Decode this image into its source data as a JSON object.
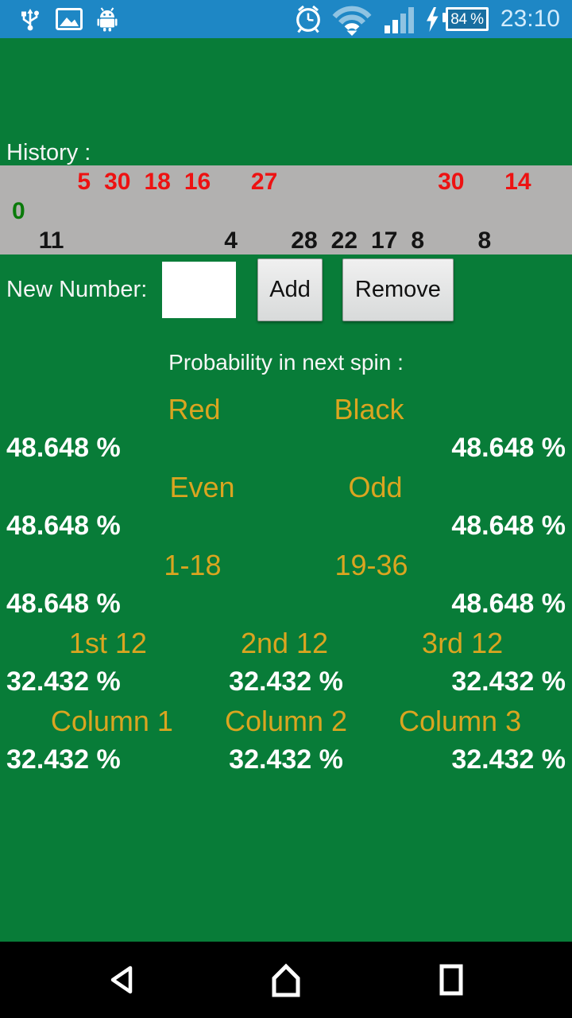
{
  "status_bar": {
    "time": "23:10",
    "battery": "84 %",
    "left_icons": [
      "usb-icon",
      "photo-icon",
      "android-icon"
    ],
    "right_icons": [
      "alarm-icon",
      "wifi-icon",
      "signal-icon",
      "charging-bolt-icon",
      "battery-icon"
    ]
  },
  "history": {
    "label": "History :",
    "entries": [
      {
        "value": "0",
        "color": "green"
      },
      {
        "value": "11",
        "color": "black"
      },
      {
        "value": "5",
        "color": "red"
      },
      {
        "value": "30",
        "color": "red"
      },
      {
        "value": "18",
        "color": "red"
      },
      {
        "value": "16",
        "color": "red"
      },
      {
        "value": "4",
        "color": "black"
      },
      {
        "value": "27",
        "color": "red"
      },
      {
        "value": "28",
        "color": "black"
      },
      {
        "value": "22",
        "color": "black"
      },
      {
        "value": "17",
        "color": "black"
      },
      {
        "value": "8",
        "color": "black"
      },
      {
        "value": "30",
        "color": "red"
      },
      {
        "value": "8",
        "color": "black"
      },
      {
        "value": "14",
        "color": "red"
      }
    ]
  },
  "input_row": {
    "label": "New Number:",
    "input_value": "",
    "add_button": "Add",
    "remove_button": "Remove"
  },
  "probability": {
    "title": "Probability in next spin :",
    "rows": [
      {
        "labels": [
          "Red",
          "Black"
        ],
        "values": [
          "48.648 %",
          "48.648 %"
        ]
      },
      {
        "labels": [
          "Even",
          "Odd"
        ],
        "values": [
          "48.648 %",
          "48.648 %"
        ]
      },
      {
        "labels": [
          "1-18",
          "19-36"
        ],
        "values": [
          "48.648 %",
          "48.648 %"
        ]
      },
      {
        "labels": [
          "1st 12",
          "2nd 12",
          "3rd 12"
        ],
        "values": [
          "32.432 %",
          "32.432 %",
          "32.432 %"
        ]
      },
      {
        "labels": [
          "Column 1",
          "Column 2",
          "Column 3"
        ],
        "values": [
          "32.432 %",
          "32.432 %",
          "32.432 %"
        ]
      }
    ]
  },
  "nav_bar": {
    "icons": [
      "back-icon",
      "home-icon",
      "recents-icon"
    ]
  },
  "colors": {
    "background_green": "#087c38",
    "status_bar_blue": "#1e87c5",
    "history_strip_gray": "#b2b1b0",
    "label_gold": "#daa520",
    "red_number": "#ed1212",
    "green_number": "#0a7a0a",
    "black_number": "#141414",
    "nav_black": "#000000"
  }
}
